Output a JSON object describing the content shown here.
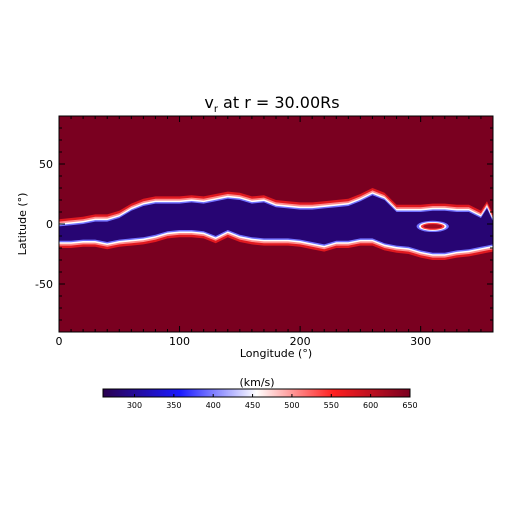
{
  "chart_data": {
    "type": "heatmap",
    "title": {
      "var": "v",
      "sub": "r",
      "rest": " at r = 30.00Rs"
    },
    "xlabel": "Longitude (°)",
    "ylabel": "Latitude (°)",
    "xlim": [
      0,
      360
    ],
    "ylim": [
      -90,
      90
    ],
    "x_ticks": [
      0,
      100,
      200,
      300
    ],
    "y_ticks": [
      50,
      0,
      -50
    ],
    "colorbar": {
      "label": "(km/s)",
      "range": [
        260,
        650
      ],
      "ticks": [
        300,
        350,
        400,
        450,
        500,
        550,
        600,
        650
      ],
      "colors": [
        "#2a004f",
        "#1a1aff",
        "#ffffff",
        "#ff2020",
        "#7a0020"
      ]
    },
    "background_value": 650,
    "slow_wind_value": 280,
    "slow_wind_band": {
      "longitude": [
        0,
        10,
        20,
        30,
        40,
        50,
        60,
        70,
        80,
        90,
        100,
        110,
        120,
        130,
        140,
        150,
        160,
        170,
        180,
        190,
        200,
        210,
        220,
        230,
        240,
        250,
        260,
        270,
        280,
        290,
        300,
        310,
        320,
        330,
        340,
        350,
        355,
        360
      ],
      "upper_latitude": [
        -2,
        -1,
        0,
        2,
        2,
        5,
        11,
        15,
        17,
        17,
        17,
        18,
        17,
        19,
        21,
        20,
        17,
        18,
        14,
        13,
        12,
        12,
        13,
        14,
        15,
        19,
        24,
        20,
        10,
        10,
        10,
        11,
        11,
        10,
        10,
        5,
        13,
        2
      ],
      "lower_latitude": [
        -14,
        -14,
        -13,
        -13,
        -15,
        -13,
        -12,
        -11,
        -9,
        -6,
        -5,
        -5,
        -6,
        -10,
        -5,
        -9,
        -11,
        -12,
        -12,
        -12,
        -13,
        -15,
        -17,
        -14,
        -14,
        -12,
        -12,
        -16,
        -18,
        -19,
        -22,
        -24,
        -24,
        -22,
        -21,
        -19,
        -18,
        -17
      ]
    },
    "fast_wind_island": {
      "center": [
        310,
        -2
      ],
      "radius": [
        9,
        2.5
      ]
    }
  }
}
